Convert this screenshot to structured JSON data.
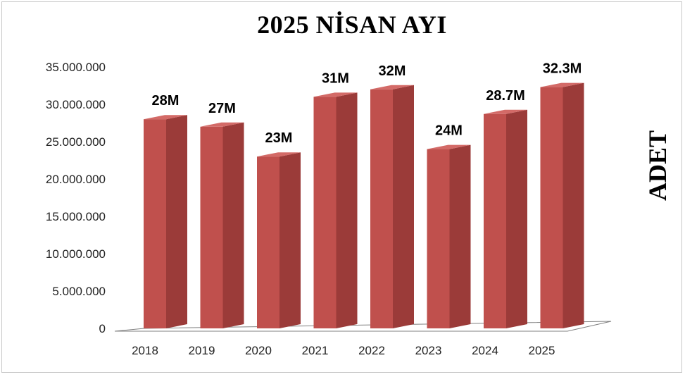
{
  "chart_data": {
    "type": "bar",
    "title": "2025 NİSAN AYI",
    "ylabel": "ADET",
    "xlabel": "",
    "categories": [
      "2018",
      "2019",
      "2020",
      "2021",
      "2022",
      "2023",
      "2024",
      "2025"
    ],
    "values": [
      28000000,
      27000000,
      23000000,
      31000000,
      32000000,
      24000000,
      28700000,
      32300000
    ],
    "data_labels": [
      "28M",
      "27M",
      "23M",
      "31M",
      "32M",
      "24M",
      "28.7M",
      "32.3M"
    ],
    "yticks": [
      "0",
      "5.000.000",
      "10.000.000",
      "15.000.000",
      "20.000.000",
      "25.000.000",
      "30.000.000",
      "35.000.000"
    ],
    "ytick_values": [
      0,
      5000000,
      10000000,
      15000000,
      20000000,
      25000000,
      30000000,
      35000000
    ],
    "ylim": [
      0,
      35000000
    ],
    "grid": false,
    "legend": "none",
    "style": "3d-column",
    "colors": {
      "bar_front": "#c0504d",
      "bar_side": "#9b3b39",
      "bar_top": "#d36a67",
      "floor": "#808080"
    }
  }
}
